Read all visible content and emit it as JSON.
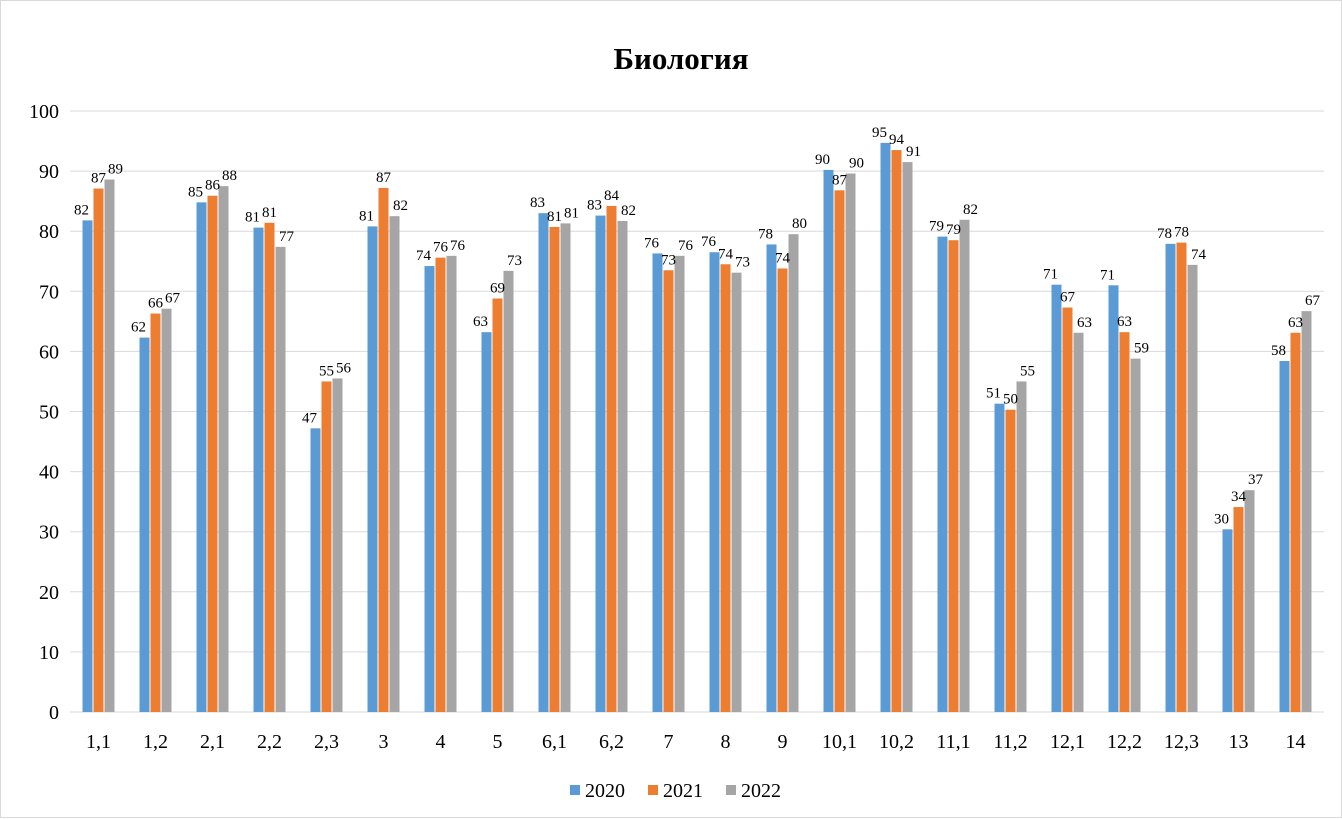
{
  "chart_data": {
    "type": "bar",
    "title": "Биология",
    "xlabel": "",
    "ylabel": "",
    "ylim": [
      0,
      100
    ],
    "yticks": [
      0,
      10,
      20,
      30,
      40,
      50,
      60,
      70,
      80,
      90,
      100
    ],
    "grid": true,
    "legend_position": "bottom",
    "categories": [
      "1,1",
      "1,2",
      "2,1",
      "2,2",
      "2,3",
      "3",
      "4",
      "5",
      "6,1",
      "6,2",
      "7",
      "8",
      "9",
      "10,1",
      "10,2",
      "11,1",
      "11,2",
      "12,1",
      "12,2",
      "12,3",
      "13",
      "14"
    ],
    "series": [
      {
        "name": "2020",
        "color": "#5B9BD5",
        "values": [
          81.8,
          62.3,
          84.8,
          80.6,
          47.2,
          80.8,
          74.2,
          63.2,
          83.0,
          82.6,
          76.3,
          76.5,
          77.8,
          90.2,
          94.7,
          79.1,
          51.3,
          71.1,
          71.0,
          77.9,
          30.4,
          58.4
        ]
      },
      {
        "name": "2021",
        "color": "#ED7D31",
        "values": [
          87.1,
          66.3,
          85.9,
          81.4,
          55.0,
          87.2,
          75.6,
          68.8,
          80.7,
          84.2,
          73.5,
          74.5,
          73.8,
          86.8,
          93.5,
          78.5,
          50.3,
          67.3,
          63.2,
          78.1,
          34.1,
          63.1
        ]
      },
      {
        "name": "2022",
        "color": "#A5A5A5",
        "values": [
          88.6,
          67.1,
          87.5,
          77.4,
          55.5,
          82.5,
          75.9,
          73.4,
          81.3,
          81.7,
          75.9,
          73.1,
          79.5,
          89.6,
          91.5,
          81.9,
          55.0,
          63.1,
          58.8,
          74.4,
          36.9,
          66.7
        ]
      }
    ],
    "data_labels": [
      [
        "82",
        "62",
        "85",
        "81",
        "47",
        "81",
        "74",
        "63",
        "83",
        "83",
        "76",
        "76",
        "78",
        "90",
        "95",
        "79",
        "51",
        "71",
        "71",
        "78",
        "30",
        "58"
      ],
      [
        "87",
        "66",
        "86",
        "81",
        "55",
        "87",
        "76",
        "69",
        "81",
        "84",
        "73",
        "74",
        "74",
        "87",
        "94",
        "79",
        "50",
        "67",
        "63",
        "78",
        "34",
        "63"
      ],
      [
        "89",
        "67",
        "88",
        "77",
        "56",
        "82",
        "76",
        "73",
        "81",
        "82",
        "76",
        "73",
        "80",
        "90",
        "91",
        "82",
        "55",
        "63",
        "59",
        "74",
        "37",
        "67"
      ]
    ]
  }
}
